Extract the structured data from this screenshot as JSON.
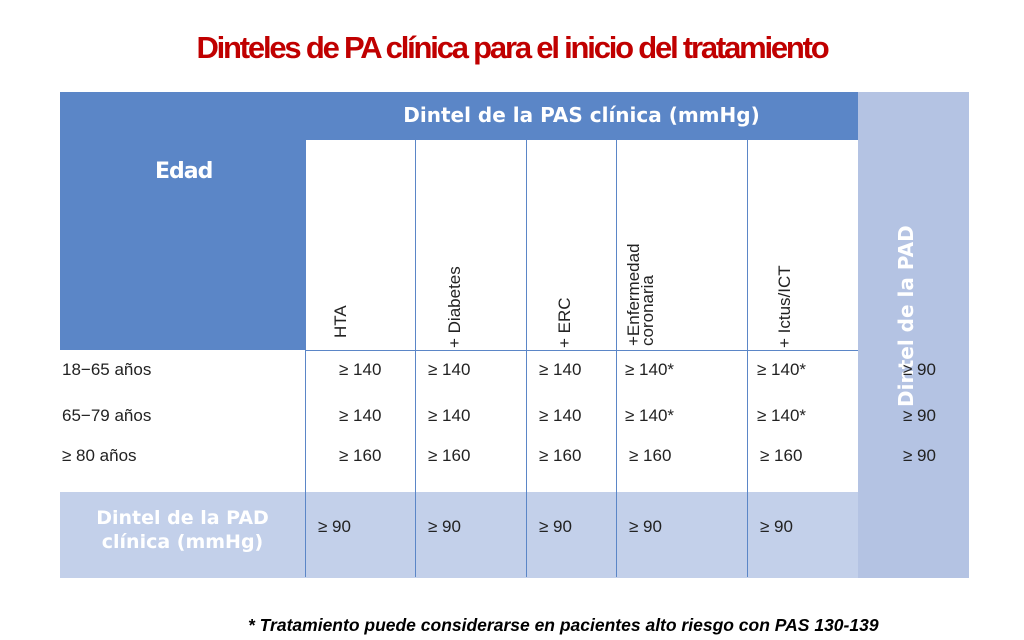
{
  "title": "Dinteles de PA clínica para  el inicio del tratamiento",
  "table": {
    "edad_label": "Edad",
    "pas_header": "Dintel de la PAS clínica (mmHg)",
    "pad_header": "Dintel de la PAD",
    "columns": [
      "HTA",
      "+ Diabetes",
      "+ ERC",
      "+Enfermedad coronaria",
      "+ Ictus/ICT"
    ],
    "rows": [
      {
        "age": "18−65 años",
        "values": [
          "≥ 140",
          "≥ 140",
          "≥ 140",
          "≥ 140*",
          "≥ 140*"
        ],
        "pad": "≥ 90"
      },
      {
        "age": "65−79 años",
        "values": [
          "≥ 140",
          "≥ 140",
          "≥ 140",
          "≥ 140*",
          "≥ 140*"
        ],
        "pad": "≥ 90"
      },
      {
        "age": "≥  80 años",
        "values": [
          "≥ 160",
          "≥ 160",
          "≥ 160",
          "≥ 160",
          "≥ 160"
        ],
        "pad": "≥ 90"
      }
    ],
    "pad_row": {
      "label_line1": "Dintel de la PAD",
      "label_line2": "clínica (mmHg)",
      "values": [
        "≥ 90",
        "≥ 90",
        "≥ 90",
        "≥ 90",
        "≥ 90"
      ]
    }
  },
  "footnote": "* Tratamiento puede considerarse en pacientes alto riesgo con PAS 130-139",
  "colors": {
    "title": "#c00000",
    "header_blue": "#5b86c7",
    "light_blue": "#b4c3e3"
  }
}
